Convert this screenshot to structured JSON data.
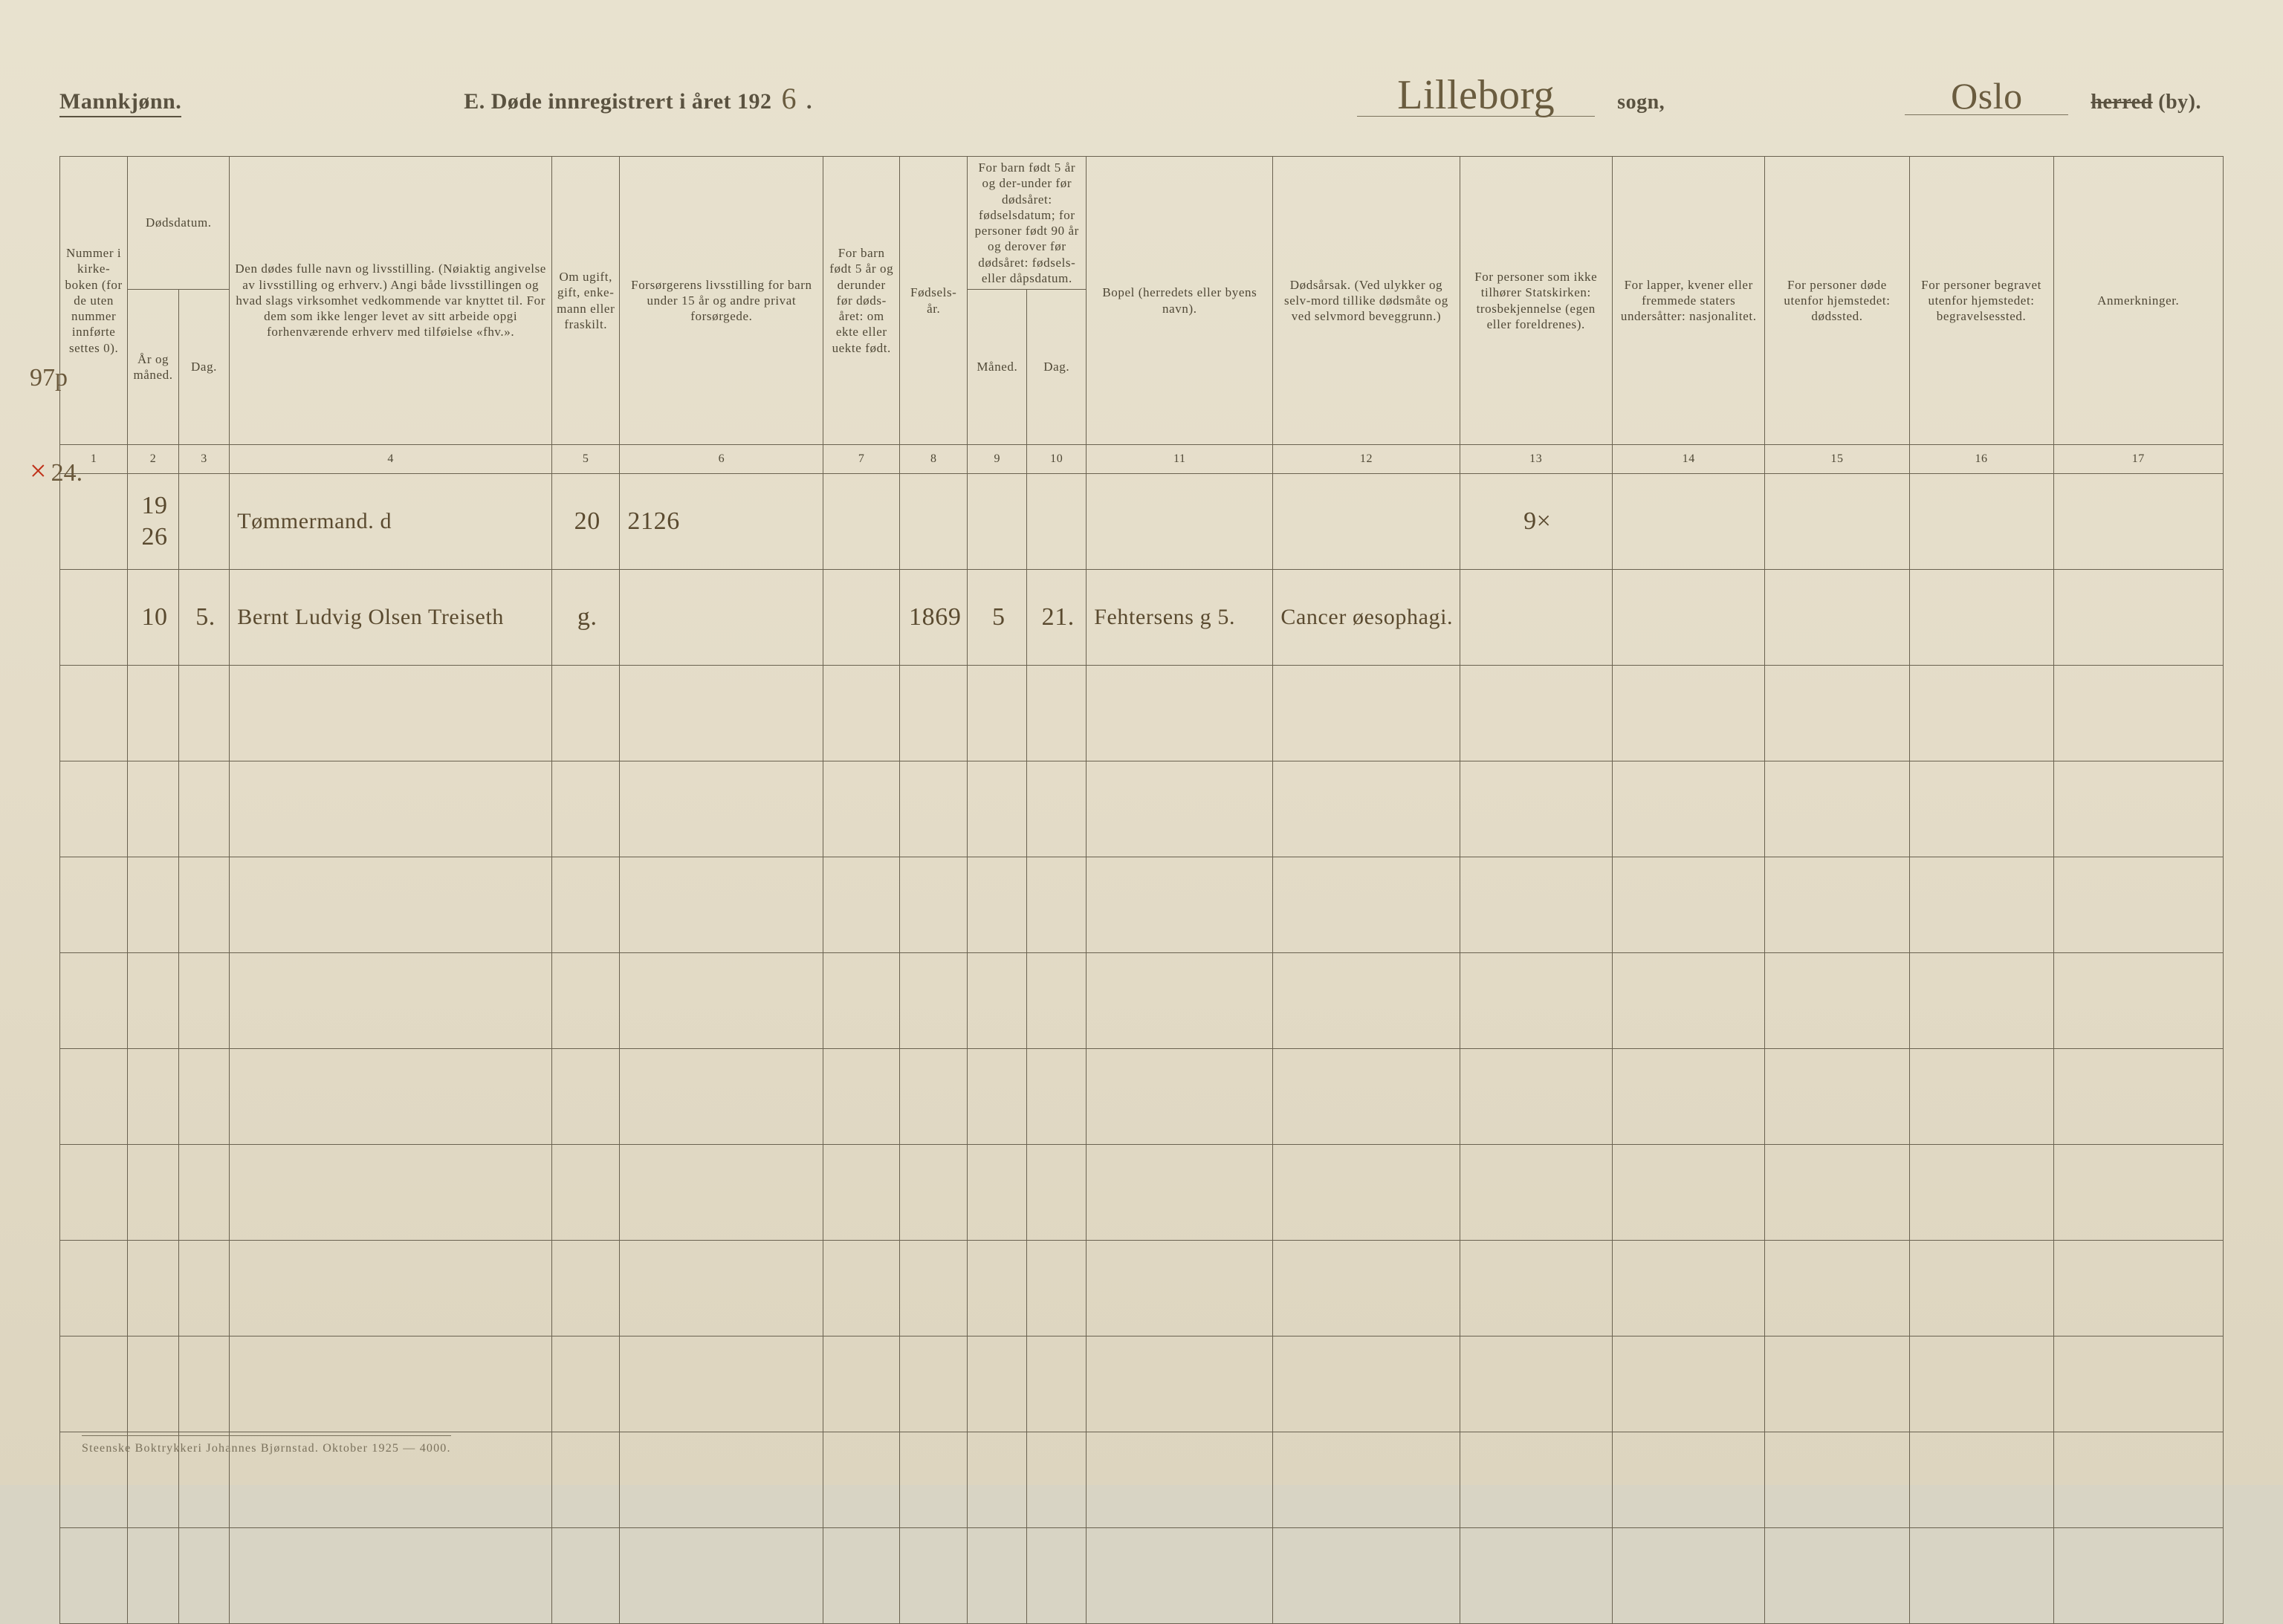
{
  "header": {
    "mannkjonn": "Mannkjønn.",
    "title_prefix": "E.  Døde innregistrert i året 192",
    "year_handwritten": "6",
    "sogn_handwritten": "Lilleborg",
    "sogn_label": "sogn,",
    "by_handwritten": "Oslo",
    "herred_strike": "herred",
    "herred_suffix": " (by)."
  },
  "columns": {
    "c1": "Nummer i kirke-boken (for de uten nummer innførte settes 0).",
    "c2_3_top": "Dødsdatum.",
    "c2": "År og måned.",
    "c3": "Dag.",
    "c4": "Den dødes fulle navn og livsstilling. (Nøiaktig angivelse av livsstilling og erhverv.) Angi både livsstillingen og hvad slags virksomhet vedkommende var knyttet til. For dem som ikke lenger levet av sitt arbeide opgi forhenværende erhverv med tilføielse «fhv.».",
    "c5": "Om ugift, gift, enke-mann eller fraskilt.",
    "c6": "Forsørgerens livsstilling for barn under 15 år og andre privat forsørgede.",
    "c7": "For barn født 5 år og derunder før døds-året: om ekte eller uekte født.",
    "c8": "Fødsels-år.",
    "c9_10_top": "For barn født 5 år og der-under før dødsåret: fødselsdatum; for personer født 90 år og derover før dødsåret: fødsels- eller dåpsdatum.",
    "c9": "Måned.",
    "c10": "Dag.",
    "c11": "Bopel (herredets eller byens navn).",
    "c12": "Dødsårsak. (Ved ulykker og selv-mord tillike dødsmåte og ved selvmord beveggrunn.)",
    "c13": "For personer som ikke tilhører Statskirken: trosbekjennelse (egen eller foreldrenes).",
    "c14": "For lapper, kvener eller fremmede staters undersåtter: nasjonalitet.",
    "c15": "For personer døde utenfor hjemstedet: dødssted.",
    "c16": "For personer begravet utenfor hjemstedet: begravelsessted.",
    "c17": "Anmerkninger."
  },
  "colnums": [
    "1",
    "2",
    "3",
    "4",
    "5",
    "6",
    "7",
    "8",
    "9",
    "10",
    "11",
    "12",
    "13",
    "14",
    "15",
    "16",
    "17"
  ],
  "rows": [
    {
      "margin_annot": "97p",
      "margin_x": false,
      "c1": "",
      "c2": "1926",
      "c3": "",
      "c4": "Tømmermand.          d",
      "c5": "20",
      "c6": "2126",
      "c7": "",
      "c8": "",
      "c9": "",
      "c10": "",
      "c11": "",
      "c12": "",
      "c13": "9×",
      "c14": "",
      "c15": "",
      "c16": "",
      "c17": ""
    },
    {
      "margin_annot": "24.",
      "margin_x": true,
      "c1": "",
      "c2": "10",
      "c3": "5.",
      "c4": "Bernt Ludvig Olsen Treiseth",
      "c5": "g.",
      "c6": "",
      "c7": "",
      "c8": "1869",
      "c9": "5",
      "c10": "21.",
      "c11": "Fehtersens g 5.",
      "c12": "Cancer øesophagi.",
      "c13": "",
      "c14": "",
      "c15": "",
      "c16": "",
      "c17": ""
    }
  ],
  "empty_row_count": 10,
  "footer": "Steenske Boktrykkeri Johannes Bjørnstad.  Oktober 1925 — 4000.",
  "style": {
    "page_bg_top": "#e8e2cf",
    "page_bg_bottom": "#ddd5bf",
    "rule_color": "#6a6250",
    "print_text_color": "#4f4836",
    "hw_text_color": "#5a4a2f",
    "x_mark_color": "#c03018",
    "header_font_size_pt": 22,
    "th_font_size_pt": 13,
    "body_font_family": "Times New Roman",
    "hw_font_family": "Segoe Script"
  }
}
